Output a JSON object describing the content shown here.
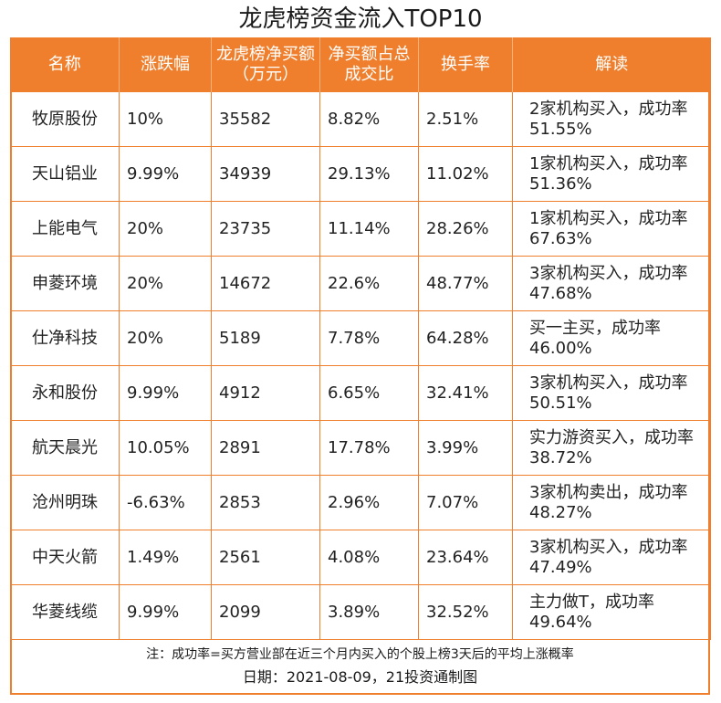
{
  "title": "龙虎榜资金流入TOP10",
  "chart_data": {
    "type": "table",
    "title": "龙虎榜资金流入TOP10",
    "columns": [
      "名称",
      "涨跌幅",
      "龙虎榜净买额（万元）",
      "净买额占总成交比",
      "换手率",
      "解读"
    ],
    "rows": [
      [
        "牧原股份",
        "10%",
        "35582",
        "8.82%",
        "2.51%",
        "2家机构买入，成功率51.55%"
      ],
      [
        "天山铝业",
        "9.99%",
        "34939",
        "29.13%",
        "11.02%",
        "1家机构买入，成功率51.36%"
      ],
      [
        "上能电气",
        "20%",
        "23735",
        "11.14%",
        "28.26%",
        "1家机构买入，成功率67.63%"
      ],
      [
        "申菱环境",
        "20%",
        "14672",
        "22.6%",
        "48.77%",
        "3家机构买入，成功率47.68%"
      ],
      [
        "仕净科技",
        "20%",
        "5189",
        "7.78%",
        "64.28%",
        "买一主买，成功率46.00%"
      ],
      [
        "永和股份",
        "9.99%",
        "4912",
        "6.65%",
        "32.41%",
        "3家机构买入，成功率50.51%"
      ],
      [
        "航天晨光",
        "10.05%",
        "2891",
        "17.78%",
        "3.99%",
        "实力游资买入，成功率38.72%"
      ],
      [
        "沧州明珠",
        "-6.63%",
        "2853",
        "2.96%",
        "7.07%",
        "3家机构卖出，成功率48.27%"
      ],
      [
        "中天火箭",
        "1.49%",
        "2561",
        "4.08%",
        "23.64%",
        "3家机构买入，成功率47.49%"
      ],
      [
        "华菱线缆",
        "9.99%",
        "2099",
        "3.89%",
        "32.52%",
        "主力做T，成功率49.64%"
      ]
    ]
  },
  "note": "注：成功率=买方营业部在近三个月内买入的个股上榜3天后的平均上涨概率",
  "date": "日期：2021-08-09，21投资通制图",
  "colors": {
    "accent": "#ef7f2c",
    "header_text": "#ffffff"
  }
}
